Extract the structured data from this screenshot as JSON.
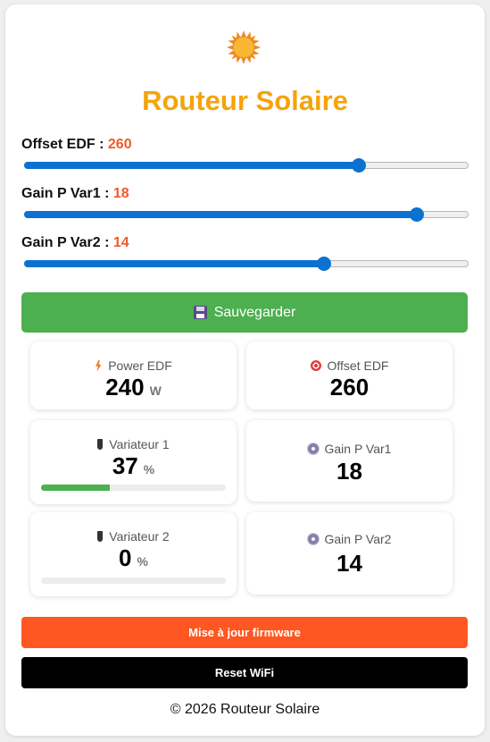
{
  "app": {
    "title": "Routeur Solaire",
    "logo_icon": "sun-icon"
  },
  "sliders": [
    {
      "label": "Offset EDF :",
      "value": "260",
      "fraction": 0.755
    },
    {
      "label": "Gain P Var1 :",
      "value": "18",
      "fraction": 0.885
    },
    {
      "label": "Gain P Var2 :",
      "value": "14",
      "fraction": 0.675
    }
  ],
  "save_button": {
    "label": "Sauvegarder",
    "icon": "floppy-disk-icon"
  },
  "tiles": {
    "power_edf": {
      "label": "Power EDF",
      "value": "240",
      "unit": "W",
      "icon": "lightning-icon"
    },
    "offset_edf": {
      "label": "Offset EDF",
      "value": "260",
      "icon": "target-icon"
    },
    "variateur1": {
      "label": "Variateur 1",
      "value": "37",
      "unit": "%",
      "progress": 0.37,
      "icon": "plug-icon"
    },
    "gain_var1": {
      "label": "Gain P Var1",
      "value": "18",
      "icon": "gear-icon"
    },
    "variateur2": {
      "label": "Variateur 2",
      "value": "0",
      "unit": "%",
      "progress": 0.0,
      "icon": "plug-icon"
    },
    "gain_var2": {
      "label": "Gain P Var2",
      "value": "14",
      "icon": "gear-icon"
    }
  },
  "firmware_button": {
    "label": "Mise à jour firmware"
  },
  "wifi_button": {
    "label": "Reset WiFi"
  },
  "footer": {
    "text": "© 2026 Routeur Solaire"
  },
  "colors": {
    "title": "#f5a30a",
    "slider_value": "#f05a28",
    "slider_accent": "#0b72d1",
    "save": "#4caf50",
    "firmware": "#ff5722",
    "wifi": "#000000"
  }
}
